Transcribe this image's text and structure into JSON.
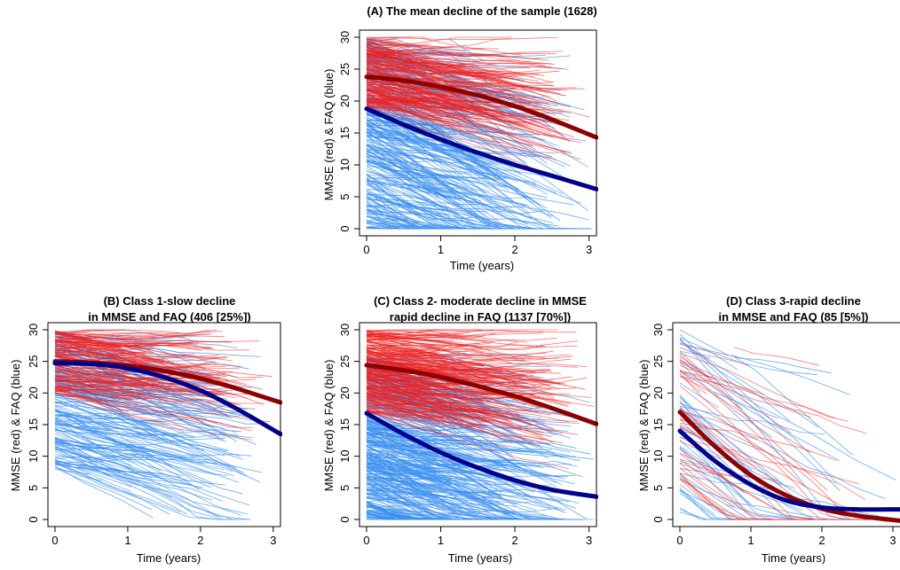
{
  "colors": {
    "mmse_individual": "#ee2020",
    "faq_individual": "#3a8ff0",
    "mmse_mean": "#8b0000",
    "faq_mean": "#00008b",
    "axis": "#000000"
  },
  "chart_data": [
    {
      "type": "line",
      "title": "(A) The mean decline of the sample (1628)",
      "xlabel": "Time (years)",
      "ylabel": "MMSE (red) & FAQ (blue)",
      "xlim": [
        0,
        3.1
      ],
      "ylim": [
        0,
        30
      ],
      "xticks": [
        "0",
        "1",
        "2",
        "3"
      ],
      "yticks": [
        "0",
        "5",
        "10",
        "15",
        "20",
        "25",
        "30"
      ],
      "grid": false,
      "individual_trajectories": {
        "mmse_color": "red",
        "faq_color": "light blue"
      },
      "series": [
        {
          "x": [
            0,
            0.5,
            1,
            1.5,
            2,
            2.5,
            3.1
          ],
          "values": [
            23.8,
            23.2,
            22.2,
            20.9,
            19.2,
            17.1,
            14.3
          ]
        },
        {
          "x": [
            0,
            0.5,
            1,
            1.5,
            2,
            2.5,
            3.1
          ],
          "values": [
            18.8,
            16.3,
            14.0,
            11.9,
            10.0,
            8.3,
            6.2
          ]
        }
      ]
    },
    {
      "type": "line",
      "title_line1": "(B) Class 1-slow decline",
      "title_line2": "in MMSE and FAQ (406 [25%])",
      "xlabel": "Time (years)",
      "ylabel": "MMSE (red) & FAQ (blue)",
      "xlim": [
        0,
        3.1
      ],
      "ylim": [
        0,
        30
      ],
      "xticks": [
        "0",
        "1",
        "2",
        "3"
      ],
      "yticks": [
        "0",
        "5",
        "10",
        "15",
        "20",
        "25",
        "30"
      ],
      "grid": false,
      "individual_trajectories": {
        "mmse_color": "red",
        "faq_color": "light blue"
      },
      "series": [
        {
          "x": [
            0,
            0.5,
            1,
            1.5,
            2,
            2.5,
            3.1
          ],
          "values": [
            25.0,
            24.8,
            24.3,
            23.5,
            22.3,
            20.7,
            18.5
          ]
        },
        {
          "x": [
            0,
            0.5,
            1,
            1.5,
            2,
            2.5,
            3.1
          ],
          "values": [
            24.7,
            24.6,
            23.9,
            22.5,
            20.4,
            17.5,
            13.5
          ]
        }
      ]
    },
    {
      "type": "line",
      "title_line1": "(C) Class 2- moderate decline in MMSE",
      "title_line2": "rapid decline in FAQ (1137 [70%])",
      "xlabel": "Time (years)",
      "ylabel": "MMSE (red)  & FAQ (blue)",
      "xlim": [
        0,
        3.1
      ],
      "ylim": [
        0,
        30
      ],
      "xticks": [
        "0",
        "1",
        "2",
        "3"
      ],
      "yticks": [
        "0",
        "5",
        "10",
        "15",
        "20",
        "25",
        "30"
      ],
      "grid": false,
      "individual_trajectories": {
        "mmse_color": "red",
        "faq_color": "light blue"
      },
      "series": [
        {
          "x": [
            0,
            0.5,
            1,
            1.5,
            2,
            2.5,
            3.1
          ],
          "values": [
            24.4,
            23.6,
            22.5,
            21.1,
            19.5,
            17.6,
            15.1
          ]
        },
        {
          "x": [
            0,
            0.5,
            1,
            1.5,
            2,
            2.5,
            3.1
          ],
          "values": [
            16.8,
            13.5,
            10.6,
            8.2,
            6.2,
            4.7,
            3.6
          ]
        }
      ]
    },
    {
      "type": "line",
      "title_line1": "(D) Class 3-rapid decline",
      "title_line2": "in MMSE and FAQ (85 [5%])",
      "xlabel": "Time (years)",
      "ylabel": "MMSE (red) & FAQ (blue)",
      "xlim": [
        0,
        3.1
      ],
      "ylim": [
        0,
        30
      ],
      "xticks": [
        "0",
        "1",
        "2",
        "3"
      ],
      "yticks": [
        "0",
        "5",
        "10",
        "15",
        "20",
        "25",
        "30"
      ],
      "grid": false,
      "individual_trajectories": {
        "mmse_color": "red",
        "faq_color": "light blue"
      },
      "series": [
        {
          "x": [
            0,
            0.5,
            1,
            1.5,
            2,
            2.5,
            3.1
          ],
          "values": [
            17.0,
            11.5,
            7.0,
            3.8,
            1.7,
            0.6,
            -0.2
          ]
        },
        {
          "x": [
            0,
            0.5,
            1,
            1.5,
            2,
            2.5,
            3.1
          ],
          "values": [
            14.0,
            9.2,
            5.5,
            3.0,
            1.9,
            1.6,
            1.6
          ]
        }
      ]
    }
  ]
}
